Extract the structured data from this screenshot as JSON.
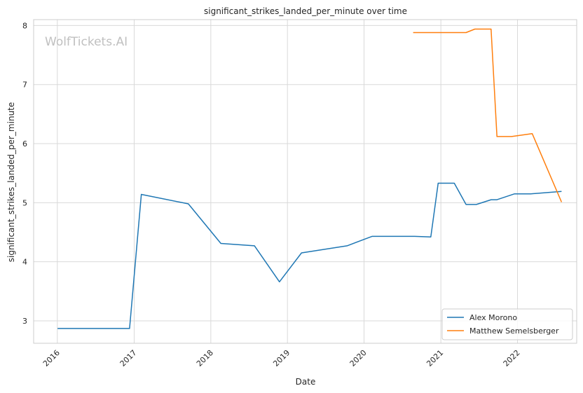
{
  "chart_data": {
    "type": "line",
    "title": "significant_strikes_landed_per_minute over time",
    "xlabel": "Date",
    "ylabel": "significant_strikes_landed_per_minute",
    "watermark": "WolfTickets.AI",
    "x_ticks": [
      "2016",
      "2017",
      "2018",
      "2019",
      "2020",
      "2021",
      "2022"
    ],
    "y_ticks": [
      "3",
      "4",
      "5",
      "6",
      "7",
      "8"
    ],
    "xlim": [
      "2015-09-10",
      "2022-10-10"
    ],
    "ylim": [
      2.62,
      8.1
    ],
    "grid": true,
    "legend_position": "lower-right",
    "series": [
      {
        "name": "Alex Morono",
        "color": "#1f77b4",
        "points": [
          [
            "2016-01-02",
            2.87
          ],
          [
            "2016-12-10",
            2.87
          ],
          [
            "2017-02-04",
            5.14
          ],
          [
            "2017-09-16",
            4.98
          ],
          [
            "2018-02-18",
            4.31
          ],
          [
            "2018-07-28",
            4.27
          ],
          [
            "2018-11-24",
            3.66
          ],
          [
            "2019-03-09",
            4.15
          ],
          [
            "2019-10-12",
            4.27
          ],
          [
            "2020-02-08",
            4.43
          ],
          [
            "2020-08-29",
            4.43
          ],
          [
            "2020-11-14",
            4.42
          ],
          [
            "2020-12-19",
            5.33
          ],
          [
            "2021-03-06",
            5.33
          ],
          [
            "2021-05-01",
            4.97
          ],
          [
            "2021-06-19",
            4.97
          ],
          [
            "2021-08-28",
            5.05
          ],
          [
            "2021-09-25",
            5.05
          ],
          [
            "2021-12-18",
            5.15
          ],
          [
            "2022-03-05",
            5.15
          ],
          [
            "2022-07-30",
            5.19
          ]
        ]
      },
      {
        "name": "Matthew Semelsberger",
        "color": "#ff7f0e",
        "points": [
          [
            "2020-08-22",
            7.88
          ],
          [
            "2021-05-01",
            7.88
          ],
          [
            "2021-06-12",
            7.94
          ],
          [
            "2021-08-28",
            7.94
          ],
          [
            "2021-09-25",
            6.12
          ],
          [
            "2021-12-04",
            6.12
          ],
          [
            "2022-03-12",
            6.17
          ],
          [
            "2022-07-30",
            5.01
          ]
        ]
      }
    ]
  }
}
